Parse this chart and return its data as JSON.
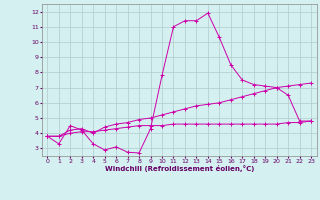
{
  "x": [
    0,
    1,
    2,
    3,
    4,
    5,
    6,
    7,
    8,
    9,
    10,
    11,
    12,
    13,
    14,
    15,
    16,
    17,
    18,
    19,
    20,
    21,
    22,
    23
  ],
  "line1": [
    3.8,
    3.3,
    4.5,
    4.2,
    3.3,
    2.9,
    3.1,
    2.75,
    2.7,
    4.3,
    7.8,
    11.0,
    11.4,
    11.4,
    11.9,
    10.3,
    8.5,
    7.5,
    7.2,
    7.1,
    7.0,
    6.5,
    4.8,
    4.8
  ],
  "line2": [
    3.8,
    3.8,
    4.2,
    4.3,
    4.0,
    4.4,
    4.6,
    4.7,
    4.9,
    5.0,
    5.2,
    5.4,
    5.6,
    5.8,
    5.9,
    6.0,
    6.2,
    6.4,
    6.6,
    6.8,
    7.0,
    7.1,
    7.2,
    7.3
  ],
  "line3": [
    3.8,
    3.8,
    4.0,
    4.1,
    4.1,
    4.2,
    4.3,
    4.4,
    4.5,
    4.5,
    4.5,
    4.6,
    4.6,
    4.6,
    4.6,
    4.6,
    4.6,
    4.6,
    4.6,
    4.6,
    4.6,
    4.7,
    4.7,
    4.8
  ],
  "line_color": "#cc00aa",
  "bg_color": "#d5f0f0",
  "grid_color": "#b0cccc",
  "xlabel": "Windchill (Refroidissement éolien,°C)",
  "ylim": [
    2.5,
    12.5
  ],
  "xlim": [
    -0.5,
    23.5
  ],
  "yticks": [
    3,
    4,
    5,
    6,
    7,
    8,
    9,
    10,
    11,
    12
  ],
  "xticks": [
    0,
    1,
    2,
    3,
    4,
    5,
    6,
    7,
    8,
    9,
    10,
    11,
    12,
    13,
    14,
    15,
    16,
    17,
    18,
    19,
    20,
    21,
    22,
    23
  ],
  "xlabel_color": "#660066",
  "tick_color": "#660066"
}
